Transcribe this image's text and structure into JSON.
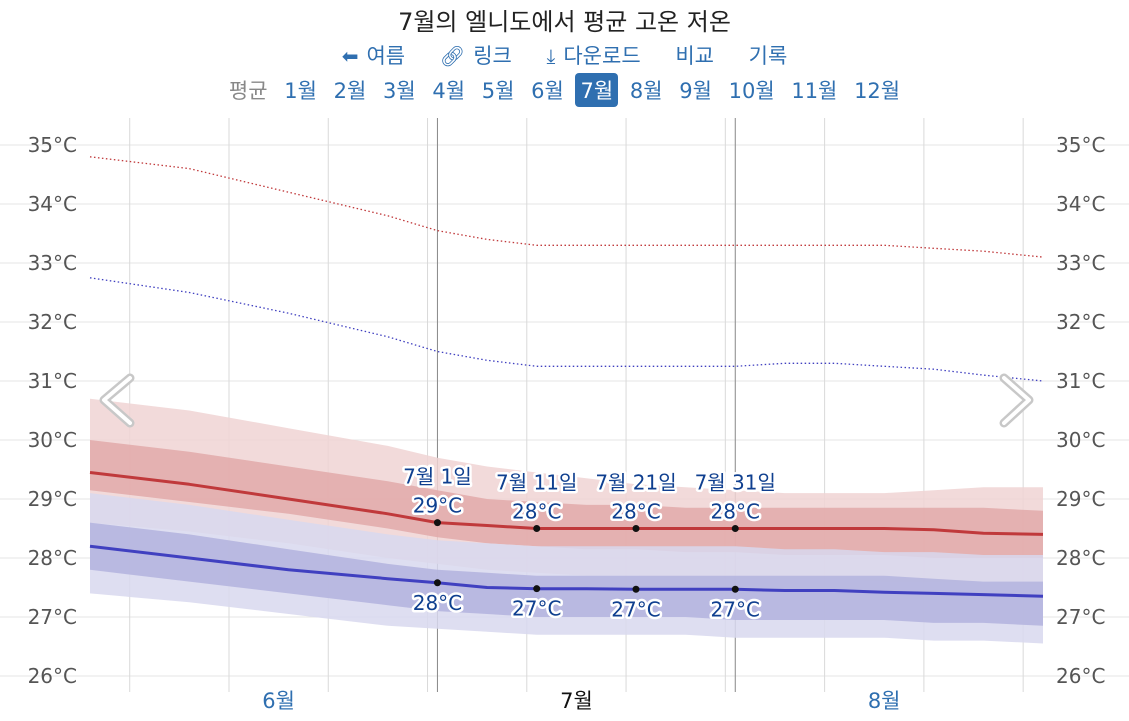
{
  "title": "7월의 엘니도에서 평균 고온 저온",
  "actions": [
    {
      "label": "여름",
      "icon": "arrow-left-icon"
    },
    {
      "label": "링크",
      "icon": "link-icon"
    },
    {
      "label": "다운로드",
      "icon": "download-icon"
    },
    {
      "label": "비교",
      "icon": ""
    },
    {
      "label": "기록",
      "icon": ""
    }
  ],
  "months_nav": {
    "items": [
      "평균",
      "1월",
      "2월",
      "3월",
      "4월",
      "5월",
      "6월",
      "7월",
      "8월",
      "9월",
      "10월",
      "11월",
      "12월"
    ],
    "active": "7월"
  },
  "colors": {
    "high": "#c0393b",
    "low": "#4040c0",
    "high_band_outer": "#f0d3d3",
    "high_band_inner": "#e2a9a9",
    "low_band_outer": "#d8d8ee",
    "low_band_inner": "#b3b3de",
    "label_dark": "#0f3f8f",
    "link": "#2f6fb0"
  },
  "chart_data": {
    "type": "line",
    "title": "7월의 엘니도에서 평균 고온 저온",
    "y_unit": "°C",
    "ylim": [
      26,
      35
    ],
    "yticks": [
      "26°C",
      "27°C",
      "28°C",
      "29°C",
      "30°C",
      "31°C",
      "32°C",
      "33°C",
      "34°C",
      "35°C"
    ],
    "xlim": [
      "2024-05-27",
      "2024-08-31"
    ],
    "month_labels": [
      {
        "label": "6월",
        "date": "2024-06-15",
        "current": false
      },
      {
        "label": "7월",
        "date": "2024-07-15",
        "current": true
      },
      {
        "label": "8월",
        "date": "2024-08-15",
        "current": false
      }
    ],
    "x": [
      "2024-05-27",
      "2024-06-06",
      "2024-06-16",
      "2024-06-26",
      "2024-07-01",
      "2024-07-06",
      "2024-07-11",
      "2024-07-16",
      "2024-07-21",
      "2024-07-26",
      "2024-07-31",
      "2024-08-05",
      "2024-08-10",
      "2024-08-15",
      "2024-08-20",
      "2024-08-25",
      "2024-08-31"
    ],
    "series": [
      {
        "key": "record_high",
        "style": "dotted",
        "values": [
          34.8,
          34.6,
          34.2,
          33.8,
          33.55,
          33.4,
          33.3,
          33.3,
          33.3,
          33.3,
          33.3,
          33.3,
          33.3,
          33.3,
          33.25,
          33.2,
          33.1
        ]
      },
      {
        "key": "record_low",
        "style": "dotted",
        "values": [
          32.75,
          32.5,
          32.15,
          31.75,
          31.5,
          31.35,
          31.25,
          31.25,
          31.25,
          31.25,
          31.25,
          31.3,
          31.3,
          31.25,
          31.2,
          31.1,
          31.0
        ]
      },
      {
        "key": "high_p90",
        "style": "band",
        "values": [
          30.7,
          30.5,
          30.2,
          29.9,
          29.7,
          29.55,
          29.45,
          29.35,
          29.25,
          29.2,
          29.15,
          29.1,
          29.1,
          29.1,
          29.15,
          29.2,
          29.2
        ]
      },
      {
        "key": "high_p75",
        "style": "band",
        "values": [
          30.0,
          29.8,
          29.55,
          29.3,
          29.15,
          29.0,
          28.95,
          28.9,
          28.9,
          28.85,
          28.85,
          28.85,
          28.85,
          28.85,
          28.85,
          28.85,
          28.8
        ]
      },
      {
        "key": "high_p25",
        "style": "band",
        "values": [
          29.15,
          28.95,
          28.75,
          28.5,
          28.35,
          28.25,
          28.2,
          28.15,
          28.15,
          28.1,
          28.1,
          28.05,
          28.05,
          28.05,
          28.0,
          28.0,
          28.0
        ]
      },
      {
        "key": "high_p10",
        "style": "band",
        "values": [
          28.6,
          28.45,
          28.25,
          28.0,
          27.9,
          27.8,
          27.75,
          27.7,
          27.7,
          27.65,
          27.65,
          27.65,
          27.65,
          27.6,
          27.6,
          27.6,
          27.55
        ]
      },
      {
        "key": "high_avg",
        "style": "solid",
        "values": [
          29.45,
          29.25,
          29.0,
          28.75,
          28.6,
          28.55,
          28.5,
          28.5,
          28.5,
          28.5,
          28.5,
          28.5,
          28.5,
          28.5,
          28.48,
          28.42,
          28.4
        ]
      },
      {
        "key": "low_p90",
        "style": "band",
        "values": [
          29.1,
          28.9,
          28.65,
          28.4,
          28.3,
          28.25,
          28.2,
          28.2,
          28.2,
          28.2,
          28.2,
          28.15,
          28.15,
          28.1,
          28.1,
          28.05,
          28.05
        ]
      },
      {
        "key": "low_p75",
        "style": "band",
        "values": [
          28.6,
          28.4,
          28.15,
          27.9,
          27.8,
          27.75,
          27.7,
          27.7,
          27.7,
          27.7,
          27.7,
          27.7,
          27.7,
          27.7,
          27.65,
          27.6,
          27.6
        ]
      },
      {
        "key": "low_p25",
        "style": "band",
        "values": [
          27.8,
          27.6,
          27.4,
          27.2,
          27.1,
          27.05,
          27.0,
          27.0,
          27.0,
          27.0,
          26.95,
          26.95,
          26.95,
          26.95,
          26.9,
          26.9,
          26.85
        ]
      },
      {
        "key": "low_p10",
        "style": "band",
        "values": [
          27.4,
          27.25,
          27.05,
          26.85,
          26.8,
          26.75,
          26.7,
          26.7,
          26.7,
          26.7,
          26.65,
          26.65,
          26.65,
          26.65,
          26.6,
          26.6,
          26.55
        ]
      },
      {
        "key": "low_avg",
        "style": "solid",
        "values": [
          28.2,
          28.0,
          27.8,
          27.65,
          27.58,
          27.5,
          27.48,
          27.48,
          27.47,
          27.47,
          27.47,
          27.45,
          27.45,
          27.42,
          27.4,
          27.38,
          27.35
        ]
      }
    ],
    "annotations": [
      {
        "date": "2024-07-01",
        "date_label": "7월 1일",
        "high": 28.6,
        "high_label": "29°C",
        "low": 27.58,
        "low_label": "28°C"
      },
      {
        "date": "2024-07-11",
        "date_label": "7월 11일",
        "high": 28.5,
        "high_label": "28°C",
        "low": 27.48,
        "low_label": "27°C"
      },
      {
        "date": "2024-07-21",
        "date_label": "7월 21일",
        "high": 28.5,
        "high_label": "28°C",
        "low": 27.47,
        "low_label": "27°C"
      },
      {
        "date": "2024-07-31",
        "date_label": "7월 31일",
        "high": 28.5,
        "high_label": "28°C",
        "low": 27.47,
        "low_label": "27°C"
      }
    ],
    "month_boundaries": [
      "2024-07-01",
      "2024-07-31"
    ],
    "grid": true
  }
}
